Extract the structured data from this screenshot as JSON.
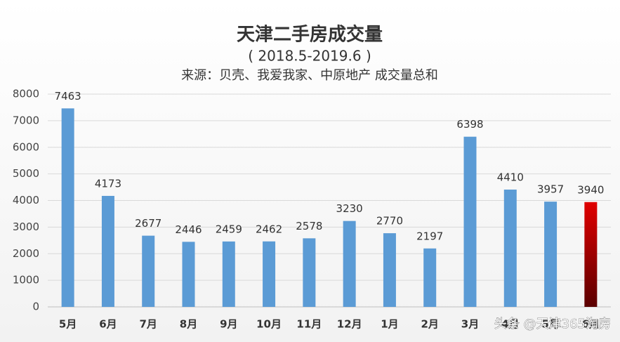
{
  "chart_data": {
    "type": "bar",
    "title": "天津二手房成交量",
    "subtitle": "( 2018.5-2019.6 )",
    "source": "来源：贝壳、我爱我家、中原地产 成交量总和",
    "categories": [
      "5月",
      "6月",
      "7月",
      "8月",
      "9月",
      "10月",
      "11月",
      "12月",
      "1月",
      "2月",
      "3月",
      "4月",
      "5月",
      "6月"
    ],
    "values": [
      7463,
      4173,
      2677,
      2446,
      2459,
      2462,
      2578,
      3230,
      2770,
      2197,
      6398,
      4410,
      3957,
      3940
    ],
    "colors": [
      "#5b9bd5",
      "#5b9bd5",
      "#5b9bd5",
      "#5b9bd5",
      "#5b9bd5",
      "#5b9bd5",
      "#5b9bd5",
      "#5b9bd5",
      "#5b9bd5",
      "#5b9bd5",
      "#5b9bd5",
      "#5b9bd5",
      "#5b9bd5",
      "#e00000"
    ],
    "ylim": [
      0,
      8000
    ],
    "yticks": [
      0,
      1000,
      2000,
      3000,
      4000,
      5000,
      6000,
      7000,
      8000
    ],
    "grid": true,
    "watermark": "头条 @天津365淘房"
  }
}
